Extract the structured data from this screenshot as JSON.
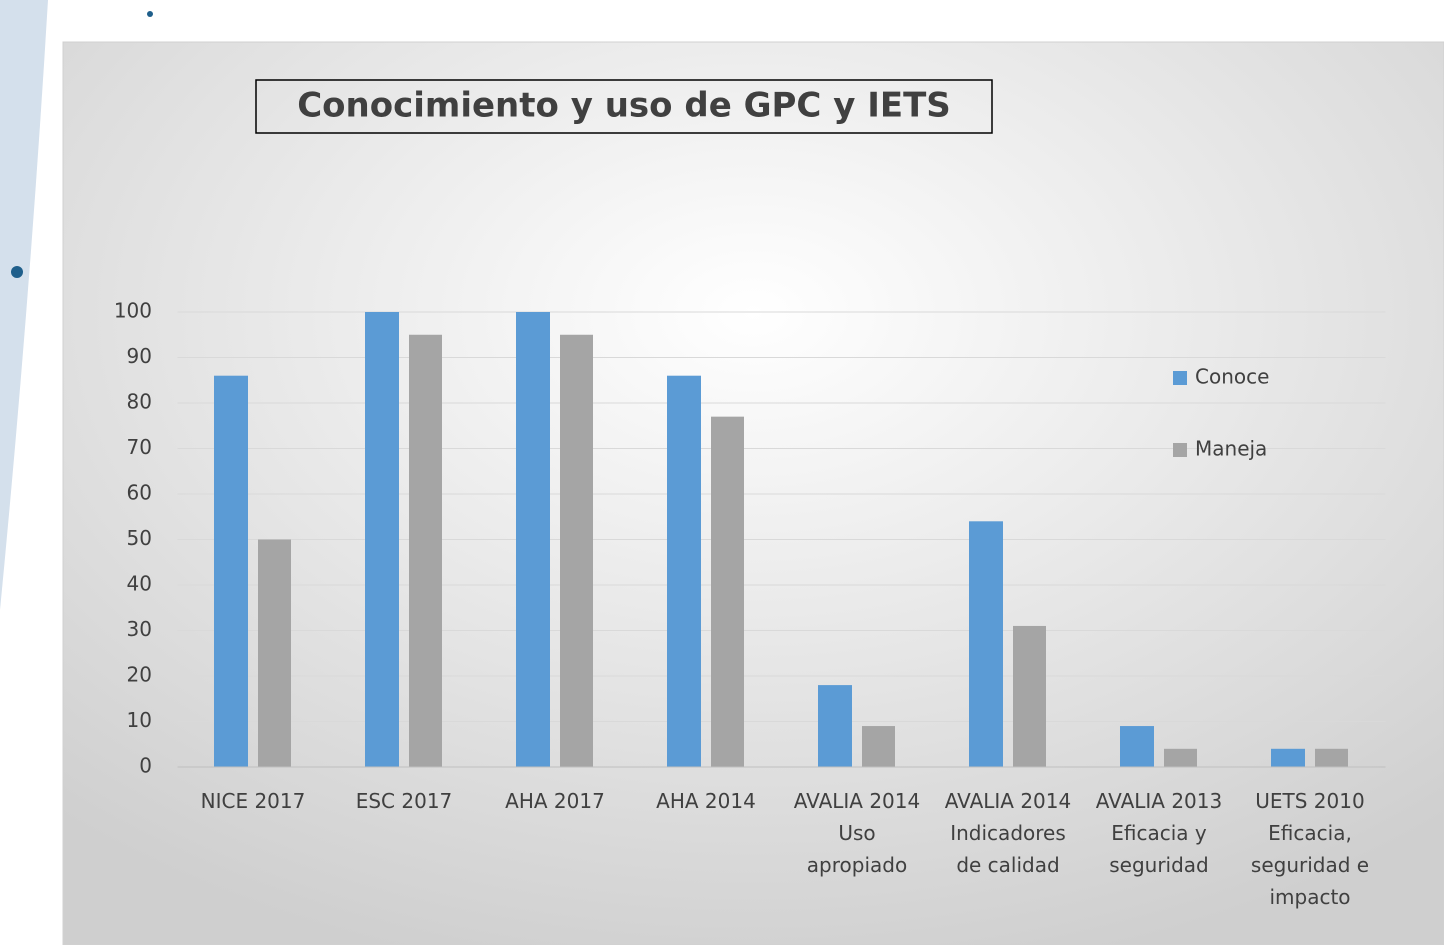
{
  "chart_data": {
    "type": "bar",
    "title": "Conocimiento y uso de GPC y IETS",
    "categories": [
      "NICE 2017",
      "ESC 2017",
      "AHA 2017",
      "AHA 2014",
      "AVALIA 2014\nUso\napropiado",
      "AVALIA 2014\nIndicadores\nde calidad",
      "AVALIA 2013\nEficacia y\nseguridad",
      "UETS 2010\nEficacia,\nseguridad e\nimpacto"
    ],
    "series": [
      {
        "name": "Conoce",
        "color": "#5b9bd5",
        "values": [
          86,
          100,
          100,
          86,
          18,
          54,
          9,
          4
        ]
      },
      {
        "name": "Maneja",
        "color": "#a5a5a5",
        "values": [
          50,
          95,
          95,
          77,
          9,
          31,
          4,
          4
        ]
      }
    ],
    "ylim": [
      0,
      100
    ],
    "yticks": [
      0,
      10,
      20,
      30,
      40,
      50,
      60,
      70,
      80,
      90,
      100
    ],
    "grid": true,
    "legend": "right"
  }
}
